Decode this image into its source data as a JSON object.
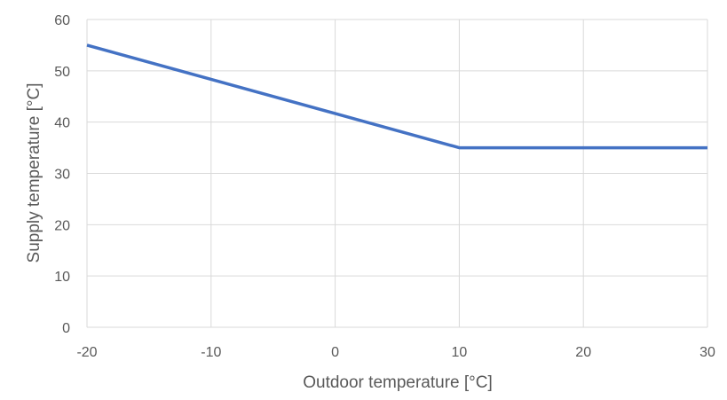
{
  "chart_data": {
    "type": "line",
    "title": "",
    "xlabel": "Outdoor temperature [°C]",
    "ylabel": "Supply temperature [°C]",
    "xlim": [
      -20,
      30
    ],
    "ylim": [
      0,
      60
    ],
    "x_ticks": [
      -20,
      -10,
      0,
      10,
      20,
      30
    ],
    "y_ticks": [
      0,
      10,
      20,
      30,
      40,
      50,
      60
    ],
    "grid": true,
    "legend": "none",
    "series": [
      {
        "color": "#4472C4",
        "x": [
          -20,
          10,
          30
        ],
        "y": [
          55,
          35,
          35
        ]
      }
    ]
  }
}
